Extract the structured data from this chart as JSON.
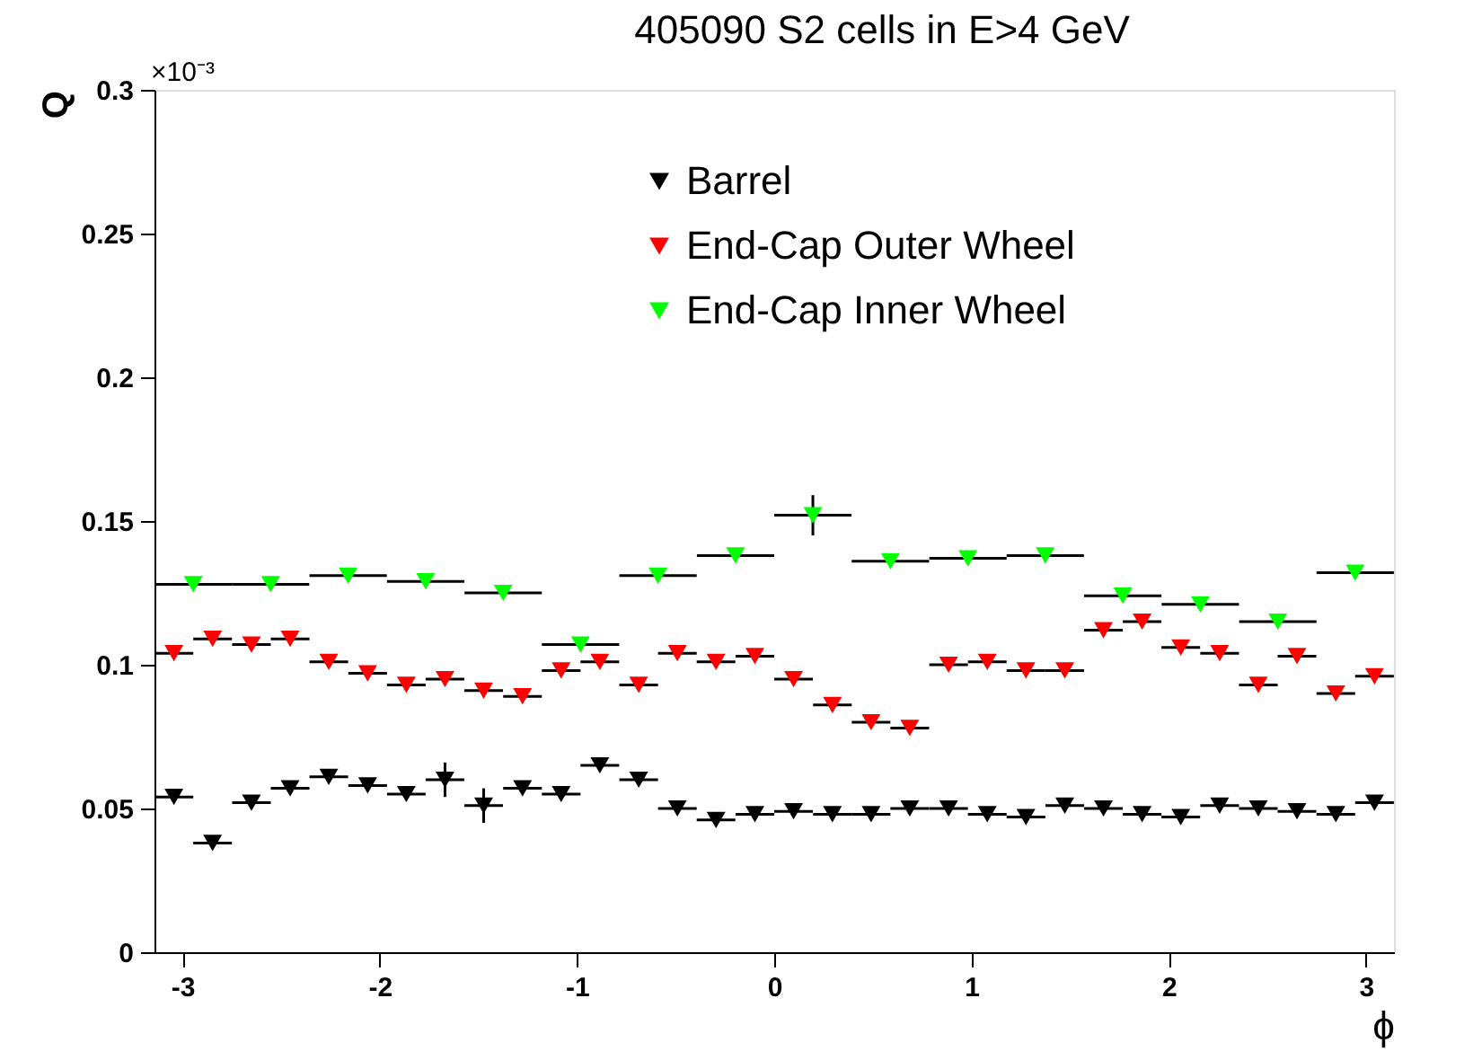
{
  "chart_data": {
    "type": "scatter",
    "title": "405090  S2 cells in E>4 GeV",
    "xlabel": "ϕ",
    "ylabel": "Q",
    "annotations": [
      "×10⁻³"
    ],
    "xlim": [
      -3.1416,
      3.1416
    ],
    "xticks": [
      -3,
      -2,
      -1,
      0,
      1,
      2,
      3
    ],
    "ylim": [
      0,
      0.3
    ],
    "yticks": [
      0,
      0.05,
      0.1,
      0.15,
      0.2,
      0.25,
      0.3
    ],
    "grid": false,
    "legend": "top",
    "marker": "triangle",
    "series": [
      {
        "name": "Barrel",
        "color": "#000000",
        "x": [
          -3.043,
          -2.847,
          -2.65,
          -2.454,
          -2.258,
          -2.061,
          -1.865,
          -1.669,
          -1.473,
          -1.276,
          -1.08,
          -0.884,
          -0.687,
          -0.491,
          -0.295,
          -0.098,
          0.098,
          0.295,
          0.491,
          0.687,
          0.884,
          1.08,
          1.276,
          1.473,
          1.669,
          1.865,
          2.061,
          2.258,
          2.454,
          2.65,
          2.847,
          3.043
        ],
        "values": [
          0.054,
          0.038,
          0.052,
          0.057,
          0.061,
          0.058,
          0.055,
          0.06,
          0.051,
          0.057,
          0.055,
          0.065,
          0.06,
          0.05,
          0.046,
          0.048,
          0.049,
          0.048,
          0.048,
          0.05,
          0.05,
          0.048,
          0.047,
          0.051,
          0.05,
          0.048,
          0.047,
          0.051,
          0.05,
          0.049,
          0.048,
          0.052
        ],
        "errors": [
          null,
          null,
          null,
          null,
          null,
          null,
          null,
          0.006,
          0.006,
          null,
          null,
          null,
          null,
          null,
          null,
          null,
          null,
          null,
          null,
          null,
          null,
          null,
          null,
          null,
          null,
          null,
          null,
          null,
          null,
          null,
          null,
          null
        ],
        "xerrors": [
          0.098,
          0.098,
          0.098,
          0.098,
          0.098,
          0.098,
          0.098,
          0.098,
          0.098,
          0.098,
          0.098,
          0.098,
          0.098,
          0.098,
          0.098,
          0.098,
          0.098,
          0.098,
          0.098,
          0.098,
          0.098,
          0.098,
          0.098,
          0.098,
          0.098,
          0.098,
          0.098,
          0.098,
          0.098,
          0.098,
          0.098,
          0.098
        ]
      },
      {
        "name": "End-Cap Outer Wheel",
        "color": "#ff0000",
        "x": [
          -3.043,
          -2.847,
          -2.65,
          -2.454,
          -2.258,
          -2.061,
          -1.865,
          -1.669,
          -1.473,
          -1.276,
          -1.08,
          -0.884,
          -0.687,
          -0.491,
          -0.295,
          -0.098,
          0.098,
          0.295,
          0.491,
          0.687,
          0.884,
          1.08,
          1.276,
          1.473,
          1.669,
          1.865,
          2.061,
          2.258,
          2.454,
          2.65,
          2.847,
          3.043
        ],
        "values": [
          0.104,
          0.109,
          0.107,
          0.109,
          0.101,
          0.097,
          0.093,
          0.095,
          0.091,
          0.089,
          0.098,
          0.101,
          0.093,
          0.104,
          0.101,
          0.103,
          0.095,
          0.086,
          0.08,
          0.078,
          0.1,
          0.101,
          0.098,
          0.098,
          0.112,
          0.115,
          0.106,
          0.104,
          0.093,
          0.103,
          0.09,
          0.096
        ],
        "xerrors": [
          0.098,
          0.098,
          0.098,
          0.098,
          0.098,
          0.098,
          0.098,
          0.098,
          0.098,
          0.098,
          0.098,
          0.098,
          0.098,
          0.098,
          0.098,
          0.098,
          0.098,
          0.098,
          0.098,
          0.098,
          0.098,
          0.098,
          0.098,
          0.098,
          0.098,
          0.098,
          0.098,
          0.098,
          0.098,
          0.098,
          0.098,
          0.098
        ]
      },
      {
        "name": "End-Cap Inner Wheel",
        "color": "#00ff00",
        "x": [
          -2.945,
          -2.553,
          -2.16,
          -1.767,
          -1.374,
          -0.982,
          -0.589,
          -0.196,
          0.196,
          0.589,
          0.982,
          1.374,
          1.767,
          2.16,
          2.553,
          2.945
        ],
        "values": [
          0.128,
          0.128,
          0.131,
          0.129,
          0.125,
          0.107,
          0.131,
          0.138,
          0.152,
          0.136,
          0.137,
          0.138,
          0.124,
          0.121,
          0.115,
          0.132
        ],
        "errors": [
          null,
          null,
          null,
          null,
          null,
          null,
          null,
          null,
          0.007,
          null,
          null,
          null,
          null,
          null,
          null,
          null
        ],
        "xerrors": [
          0.196,
          0.196,
          0.196,
          0.196,
          0.196,
          0.196,
          0.196,
          0.196,
          0.196,
          0.196,
          0.196,
          0.196,
          0.196,
          0.196,
          0.196,
          0.196
        ]
      }
    ]
  }
}
